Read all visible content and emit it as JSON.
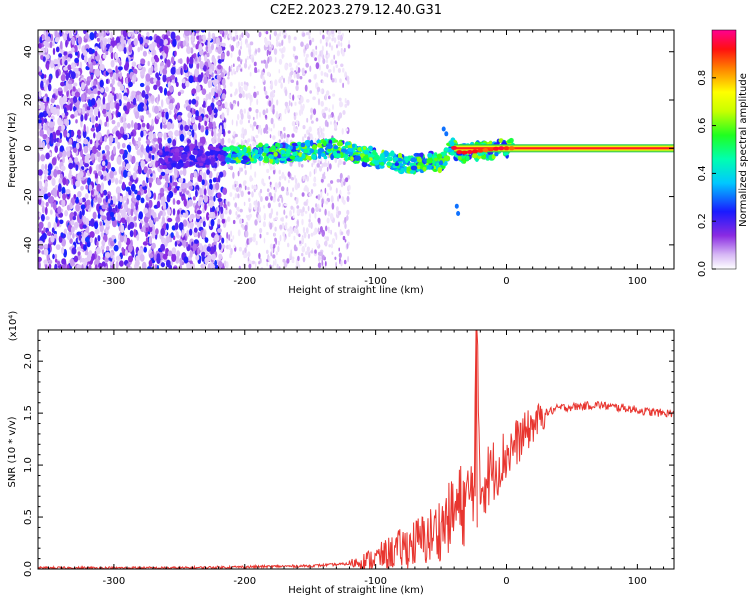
{
  "figure_title": "C2E2.2023.279.12.40.G31",
  "colors": {
    "snr_line": "#e8352f",
    "signal_core": "#ff2020",
    "axis": "#000000"
  },
  "chart_data": [
    {
      "type": "heatmap",
      "title": "C2E2.2023.279.12.40.G31",
      "xlabel": "Height of straight line (km)",
      "ylabel": "Frequency (Hz)",
      "xlim": [
        -358,
        128
      ],
      "ylim": [
        -50,
        49
      ],
      "xticks": [
        "-300",
        "-200",
        "-100",
        "0",
        "100"
      ],
      "yticks": [
        "-40",
        "-20",
        "0",
        "20",
        "40"
      ],
      "colorbar": {
        "label": "Normalized spectral amplitude",
        "range": [
          0,
          1
        ],
        "ticks": [
          "0.0",
          "0.2",
          "0.4",
          "0.6",
          "0.8"
        ],
        "colormap": "white-purple-blue-cyan-green-yellow-red-magenta"
      },
      "regions": [
        {
          "x": [
            -358,
            -215
          ],
          "description_freq": [
            -50,
            49
          ],
          "amplitude": 0.1
        },
        {
          "x": [
            -215,
            -120
          ],
          "description_freq": [
            -50,
            49
          ],
          "amplitude": 0.03
        },
        {
          "x": [
            -40,
            128
          ],
          "description_freq": [
            0,
            0
          ],
          "amplitude": 0.95
        }
      ],
      "ridge": {
        "x": [
          -265,
          -210,
          -190,
          -170,
          -150,
          -130,
          -110,
          -90,
          -75,
          -60,
          -50,
          -42,
          -35,
          -20,
          -5,
          5,
          128
        ],
        "freq": [
          -4,
          -3,
          -2,
          -2,
          -1,
          0,
          -3,
          -5,
          -7,
          -5,
          -6,
          1,
          -2,
          -1,
          0,
          0,
          0
        ]
      },
      "grid": false
    },
    {
      "type": "line",
      "xlabel": "Height of straight line (km)",
      "ylabel": "SNR (10 * v/v)",
      "y_multiplier": "(x10⁴)",
      "xlim": [
        -358,
        128
      ],
      "ylim": [
        0,
        2.3
      ],
      "xticks": [
        "-300",
        "-200",
        "-100",
        "0",
        "100"
      ],
      "yticks": [
        "0.0",
        "0.5",
        "1.0",
        "1.5",
        "2.0"
      ],
      "series": [
        {
          "x": [
            -358,
            -300,
            -250,
            -200,
            -150,
            -120,
            -100,
            -80,
            -60,
            -50,
            -40,
            -30,
            -25,
            -23,
            -20,
            -10,
            0,
            10,
            20,
            30,
            40,
            50,
            60,
            70,
            80,
            90,
            100,
            110,
            120,
            128
          ],
          "y": [
            0.01,
            0.01,
            0.01,
            0.02,
            0.03,
            0.05,
            0.1,
            0.2,
            0.3,
            0.4,
            0.55,
            0.65,
            0.8,
            2.3,
            0.8,
            0.95,
            1.1,
            1.25,
            1.38,
            1.5,
            1.55,
            1.56,
            1.57,
            1.58,
            1.56,
            1.55,
            1.53,
            1.51,
            1.5,
            1.5
          ]
        }
      ],
      "grid": false
    }
  ]
}
